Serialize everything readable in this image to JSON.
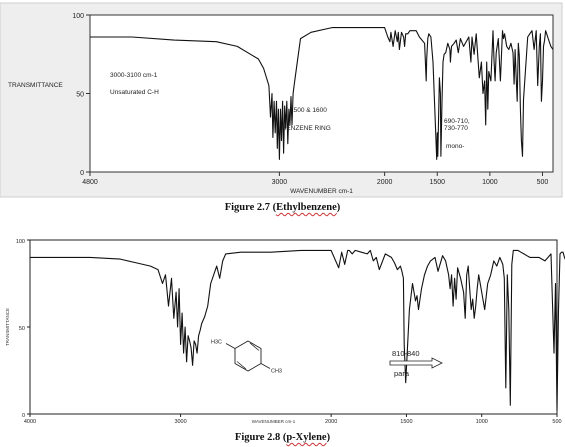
{
  "chart_data": [
    {
      "type": "line",
      "title": "",
      "xlabel": "WAVENUMBER cm-1",
      "ylabel": "TRANSMITTANCE",
      "xlim": [
        4800,
        400
      ],
      "ylim": [
        0,
        100
      ],
      "x_ticks": [
        "4800",
        "3000",
        "2000",
        "1500",
        "1000",
        "500"
      ],
      "y_ticks": [
        "100",
        "50",
        "0"
      ],
      "annotations": [
        "3000-3100 cm-1",
        "Unsaturated C-H",
        "1500 & 1600",
        "BENZENE RING",
        "690-710,",
        "730-770",
        "mono-"
      ],
      "caption": {
        "prefix": "Figure 2.7 (",
        "name": "Ethylbenzene",
        "suffix": ")"
      },
      "series": [
        {
          "x": [
            4800,
            4400,
            4000,
            3600,
            3400,
            3300,
            3200,
            3150,
            3100,
            3085,
            3070,
            3062,
            3050,
            3040,
            3028,
            3020,
            3010,
            3000,
            2990,
            2980,
            2970,
            2960,
            2950,
            2940,
            2930,
            2920,
            2910,
            2900,
            2890,
            2880,
            2870,
            2860,
            2840,
            2800,
            2700,
            2500,
            2200,
            2000,
            1970,
            1950,
            1940,
            1920,
            1900,
            1880,
            1870,
            1860,
            1840,
            1820,
            1810,
            1800,
            1780,
            1760,
            1700,
            1670,
            1620,
            1605,
            1600,
            1590,
            1580,
            1560,
            1540,
            1520,
            1505,
            1500,
            1495,
            1480,
            1470,
            1465,
            1455,
            1445,
            1435,
            1420,
            1400,
            1380,
            1375,
            1365,
            1340,
            1320,
            1300,
            1280,
            1250,
            1200,
            1180,
            1170,
            1150,
            1130,
            1100,
            1080,
            1065,
            1050,
            1040,
            1030,
            1020,
            1010,
            990,
            970,
            960,
            950,
            940,
            920,
            900,
            880,
            870,
            860,
            840,
            820,
            800,
            780,
            770,
            760,
            750,
            740,
            730,
            720,
            710,
            700,
            690,
            680,
            660,
            640,
            620,
            600,
            580,
            560,
            545,
            530,
            520,
            510,
            500,
            490,
            480,
            470,
            460,
            450,
            430,
            420,
            400
          ],
          "y": [
            86,
            86,
            84,
            83,
            80,
            76,
            72,
            66,
            55,
            35,
            50,
            22,
            45,
            25,
            45,
            15,
            40,
            8,
            40,
            20,
            45,
            12,
            42,
            28,
            45,
            18,
            40,
            30,
            48,
            30,
            50,
            55,
            65,
            85,
            89,
            92,
            92,
            92,
            86,
            83,
            89,
            80,
            90,
            83,
            89,
            78,
            89,
            86,
            80,
            88,
            88,
            90,
            90,
            86,
            82,
            58,
            72,
            85,
            88,
            86,
            70,
            35,
            8,
            25,
            10,
            60,
            50,
            10,
            45,
            70,
            75,
            76,
            82,
            78,
            70,
            80,
            82,
            84,
            76,
            85,
            80,
            86,
            70,
            86,
            75,
            88,
            60,
            70,
            50,
            58,
            30,
            70,
            40,
            64,
            58,
            90,
            70,
            58,
            76,
            85,
            58,
            90,
            85,
            88,
            80,
            78,
            82,
            76,
            56,
            78,
            60,
            45,
            82,
            74,
            40,
            20,
            10,
            46,
            66,
            86,
            88,
            90,
            78,
            90,
            55,
            80,
            88,
            45,
            58,
            80,
            84,
            90,
            88,
            86,
            82,
            80,
            78
          ]
        }
      ]
    },
    {
      "type": "line",
      "title": "",
      "xlabel": "WAVENUMBER cm-1",
      "ylabel": "TRANSMITTANCE",
      "xlim": [
        4000,
        500
      ],
      "ylim": [
        0,
        100
      ],
      "x_ticks": [
        "4000",
        "3000",
        "2000",
        "1500",
        "1000",
        "500"
      ],
      "y_ticks": [
        "100",
        "50",
        "0"
      ],
      "annotations": [
        "810-840",
        "para",
        "H3C",
        "CH3"
      ],
      "caption": {
        "prefix": "Figure 2.8 (",
        "name": "p-Xylene",
        "suffix": ")"
      },
      "series": [
        {
          "x": [
            4000,
            3800,
            3600,
            3400,
            3300,
            3200,
            3150,
            3120,
            3100,
            3080,
            3060,
            3045,
            3030,
            3020,
            3010,
            3000,
            2990,
            2980,
            2970,
            2960,
            2950,
            2940,
            2930,
            2920,
            2910,
            2900,
            2890,
            2880,
            2870,
            2860,
            2840,
            2820,
            2800,
            2760,
            2740,
            2720,
            2700,
            2600,
            2400,
            2200,
            2000,
            1950,
            1930,
            1910,
            1890,
            1880,
            1860,
            1840,
            1800,
            1760,
            1740,
            1720,
            1700,
            1680,
            1640,
            1600,
            1580,
            1560,
            1540,
            1530,
            1520,
            1515,
            1505,
            1495,
            1480,
            1460,
            1450,
            1440,
            1430,
            1420,
            1400,
            1380,
            1360,
            1340,
            1310,
            1290,
            1260,
            1240,
            1220,
            1210,
            1200,
            1190,
            1180,
            1170,
            1160,
            1140,
            1120,
            1110,
            1100,
            1090,
            1080,
            1070,
            1060,
            1050,
            1040,
            1030,
            1020,
            1000,
            980,
            960,
            940,
            920,
            900,
            880,
            860,
            850,
            840,
            830,
            820,
            810,
            800,
            790,
            780,
            760,
            740,
            720,
            700,
            680,
            660,
            640,
            620,
            600,
            580,
            560,
            540,
            520,
            510,
            500,
            490,
            480,
            470,
            460,
            450,
            440,
            430,
            420,
            410,
            400
          ],
          "y": [
            90,
            90,
            90,
            89,
            87,
            85,
            83,
            75,
            80,
            62,
            78,
            55,
            70,
            50,
            72,
            40,
            58,
            35,
            50,
            30,
            45,
            42,
            38,
            28,
            42,
            40,
            35,
            45,
            48,
            52,
            56,
            62,
            75,
            85,
            78,
            88,
            92,
            93,
            93,
            94,
            94,
            84,
            93,
            86,
            94,
            94,
            92,
            94,
            93,
            92,
            94,
            88,
            90,
            83,
            92,
            90,
            87,
            83,
            85,
            82,
            78,
            40,
            18,
            35,
            60,
            75,
            70,
            65,
            68,
            60,
            72,
            80,
            85,
            88,
            90,
            82,
            91,
            88,
            80,
            72,
            80,
            62,
            78,
            66,
            84,
            78,
            70,
            55,
            80,
            85,
            72,
            60,
            66,
            55,
            62,
            72,
            80,
            70,
            60,
            75,
            80,
            88,
            85,
            90,
            86,
            78,
            15,
            80,
            60,
            5,
            86,
            94,
            94,
            94,
            93,
            92,
            91,
            90,
            90,
            90,
            90,
            89,
            88,
            90,
            92,
            35,
            75,
            2,
            60,
            92,
            93,
            93,
            90,
            88,
            70,
            90,
            92,
            92
          ]
        }
      ]
    }
  ]
}
